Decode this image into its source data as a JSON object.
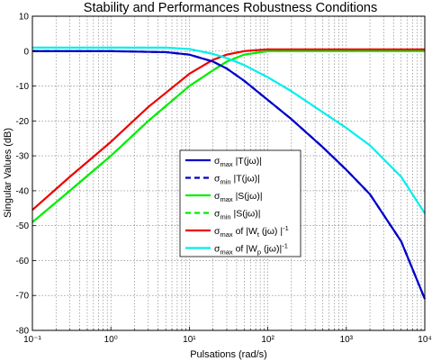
{
  "chart_data": {
    "type": "line",
    "title": "Stability and Performances Robustness Conditions",
    "xlabel": "Pulsations (rad/s)",
    "ylabel": "Singular Values (dB)",
    "xscale": "log",
    "xlim": [
      0.1,
      10000
    ],
    "ylim": [
      -80,
      10
    ],
    "xticks": [
      {
        "value": 0.1,
        "label": "10⁻¹"
      },
      {
        "value": 1,
        "label": "10⁰"
      },
      {
        "value": 10,
        "label": "10¹"
      },
      {
        "value": 100,
        "label": "10²"
      },
      {
        "value": 1000,
        "label": "10³"
      },
      {
        "value": 10000,
        "label": "10⁴"
      }
    ],
    "yticks": [
      10,
      0,
      -10,
      -20,
      -30,
      -40,
      -50,
      -60,
      -70,
      -80
    ],
    "grid": true,
    "legend_position": "center",
    "series": [
      {
        "name": "σmax |T(jω)|",
        "label_main": "σ",
        "label_sub": "max",
        "label_rest": " |T(jω)|",
        "color": "#0000cc",
        "dash": "solid",
        "x": [
          0.1,
          1,
          5,
          10,
          20,
          30,
          50,
          100,
          200,
          500,
          1000,
          2000,
          5000,
          10000
        ],
        "y": [
          0,
          0,
          -0.3,
          -1,
          -3,
          -5,
          -8.5,
          -14,
          -19.5,
          -27.5,
          -34,
          -41,
          -54.5,
          -71
        ]
      },
      {
        "name": "σmin |T(jω)|",
        "label_main": "σ",
        "label_sub": "min",
        "label_rest": " |T(jω)|",
        "color": "#0000cc",
        "dash": "dashed",
        "x": [
          0.1,
          1,
          5,
          10,
          20,
          30,
          50,
          100,
          200,
          500,
          1000,
          2000,
          5000,
          10000
        ],
        "y": [
          0,
          0,
          -0.3,
          -1,
          -3,
          -5,
          -8.5,
          -14,
          -19.5,
          -27.5,
          -34,
          -41,
          -54.5,
          -71
        ]
      },
      {
        "name": "σmax |S(jω)|",
        "label_main": "σ",
        "label_sub": "max",
        "label_rest": " |S(jω)|",
        "color": "#00ee00",
        "dash": "solid",
        "x": [
          0.1,
          0.3,
          1,
          3,
          10,
          20,
          30,
          50,
          100,
          1000,
          10000
        ],
        "y": [
          -49,
          -40,
          -30,
          -20,
          -10,
          -5.5,
          -3,
          -1,
          0,
          0,
          0
        ]
      },
      {
        "name": "σmin |S(jω)|",
        "label_main": "σ",
        "label_sub": "min",
        "label_rest": " |S(jω)|",
        "color": "#00ee00",
        "dash": "dashed",
        "x": [
          0.1,
          0.3,
          1,
          3,
          10,
          20,
          30,
          50,
          100,
          1000,
          10000
        ],
        "y": [
          -49,
          -40,
          -30,
          -20,
          -10,
          -5.5,
          -3,
          -1,
          0,
          0,
          0
        ]
      },
      {
        "name": "σmax of |Wt(jω)|⁻¹",
        "label_main": "σ",
        "label_sub": "max",
        "label_rest": " of |W",
        "label_sub2": "t",
        "label_rest2": " (jω) |",
        "label_sup": "-1",
        "color": "#ee0000",
        "dash": "solid",
        "x": [
          0.1,
          0.3,
          1,
          3,
          10,
          20,
          30,
          50,
          100,
          1000,
          10000
        ],
        "y": [
          -45.5,
          -36,
          -26,
          -16,
          -6.5,
          -2.5,
          -1,
          0,
          0.5,
          0.5,
          0.5
        ]
      },
      {
        "name": "σmax of |Wp(jω)|⁻¹",
        "label_main": "σ",
        "label_sub": "max",
        "label_rest": " of |W",
        "label_sub2": "p",
        "label_rest2": " (jω)|",
        "label_sup": "-1",
        "color": "#00eeee",
        "dash": "solid",
        "x": [
          0.1,
          1,
          5,
          10,
          20,
          30,
          50,
          100,
          200,
          500,
          1000,
          2000,
          5000,
          10000
        ],
        "y": [
          1,
          1,
          1,
          0.6,
          -0.8,
          -2,
          -4,
          -7.5,
          -11.5,
          -17.5,
          -22,
          -27,
          -36,
          -46.5
        ]
      }
    ]
  }
}
